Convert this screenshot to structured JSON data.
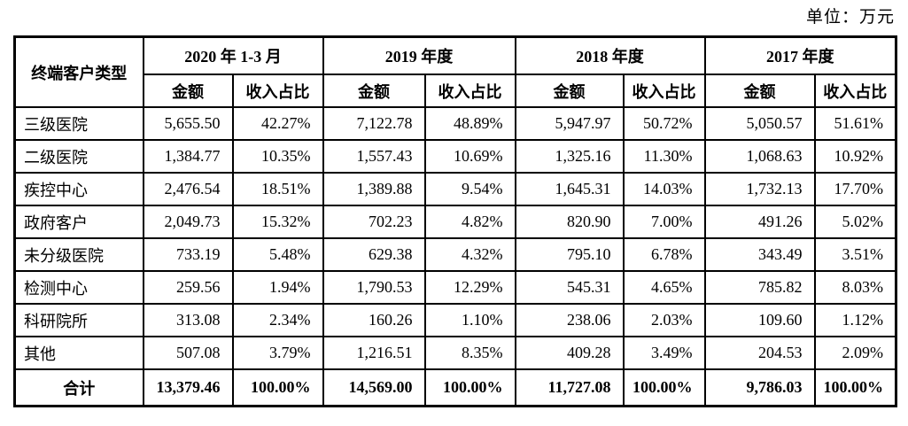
{
  "page": {
    "unit_label": "单位：万元"
  },
  "table": {
    "corner_header": "终端客户类型",
    "periods": [
      {
        "label": "2020 年 1-3 月"
      },
      {
        "label": "2019 年度"
      },
      {
        "label": "2018 年度"
      },
      {
        "label": "2017 年度"
      }
    ],
    "sub_headers": {
      "amount": "金额",
      "share": "收入占比"
    },
    "rows": [
      {
        "label": "三级医院",
        "values": [
          "5,655.50",
          "42.27%",
          "7,122.78",
          "48.89%",
          "5,947.97",
          "50.72%",
          "5,050.57",
          "51.61%"
        ]
      },
      {
        "label": "二级医院",
        "values": [
          "1,384.77",
          "10.35%",
          "1,557.43",
          "10.69%",
          "1,325.16",
          "11.30%",
          "1,068.63",
          "10.92%"
        ]
      },
      {
        "label": "疾控中心",
        "values": [
          "2,476.54",
          "18.51%",
          "1,389.88",
          "9.54%",
          "1,645.31",
          "14.03%",
          "1,732.13",
          "17.70%"
        ]
      },
      {
        "label": "政府客户",
        "values": [
          "2,049.73",
          "15.32%",
          "702.23",
          "4.82%",
          "820.90",
          "7.00%",
          "491.26",
          "5.02%"
        ]
      },
      {
        "label": "未分级医院",
        "values": [
          "733.19",
          "5.48%",
          "629.38",
          "4.32%",
          "795.10",
          "6.78%",
          "343.49",
          "3.51%"
        ]
      },
      {
        "label": "检测中心",
        "values": [
          "259.56",
          "1.94%",
          "1,790.53",
          "12.29%",
          "545.31",
          "4.65%",
          "785.82",
          "8.03%"
        ]
      },
      {
        "label": "科研院所",
        "values": [
          "313.08",
          "2.34%",
          "160.26",
          "1.10%",
          "238.06",
          "2.03%",
          "109.60",
          "1.12%"
        ]
      },
      {
        "label": "其他",
        "values": [
          "507.08",
          "3.79%",
          "1,216.51",
          "8.35%",
          "409.28",
          "3.49%",
          "204.53",
          "2.09%"
        ]
      }
    ],
    "total_row": {
      "label": "合计",
      "values": [
        "13,379.46",
        "100.00%",
        "14,569.00",
        "100.00%",
        "11,727.08",
        "100.00%",
        "9,786.03",
        "100.00%"
      ]
    }
  }
}
